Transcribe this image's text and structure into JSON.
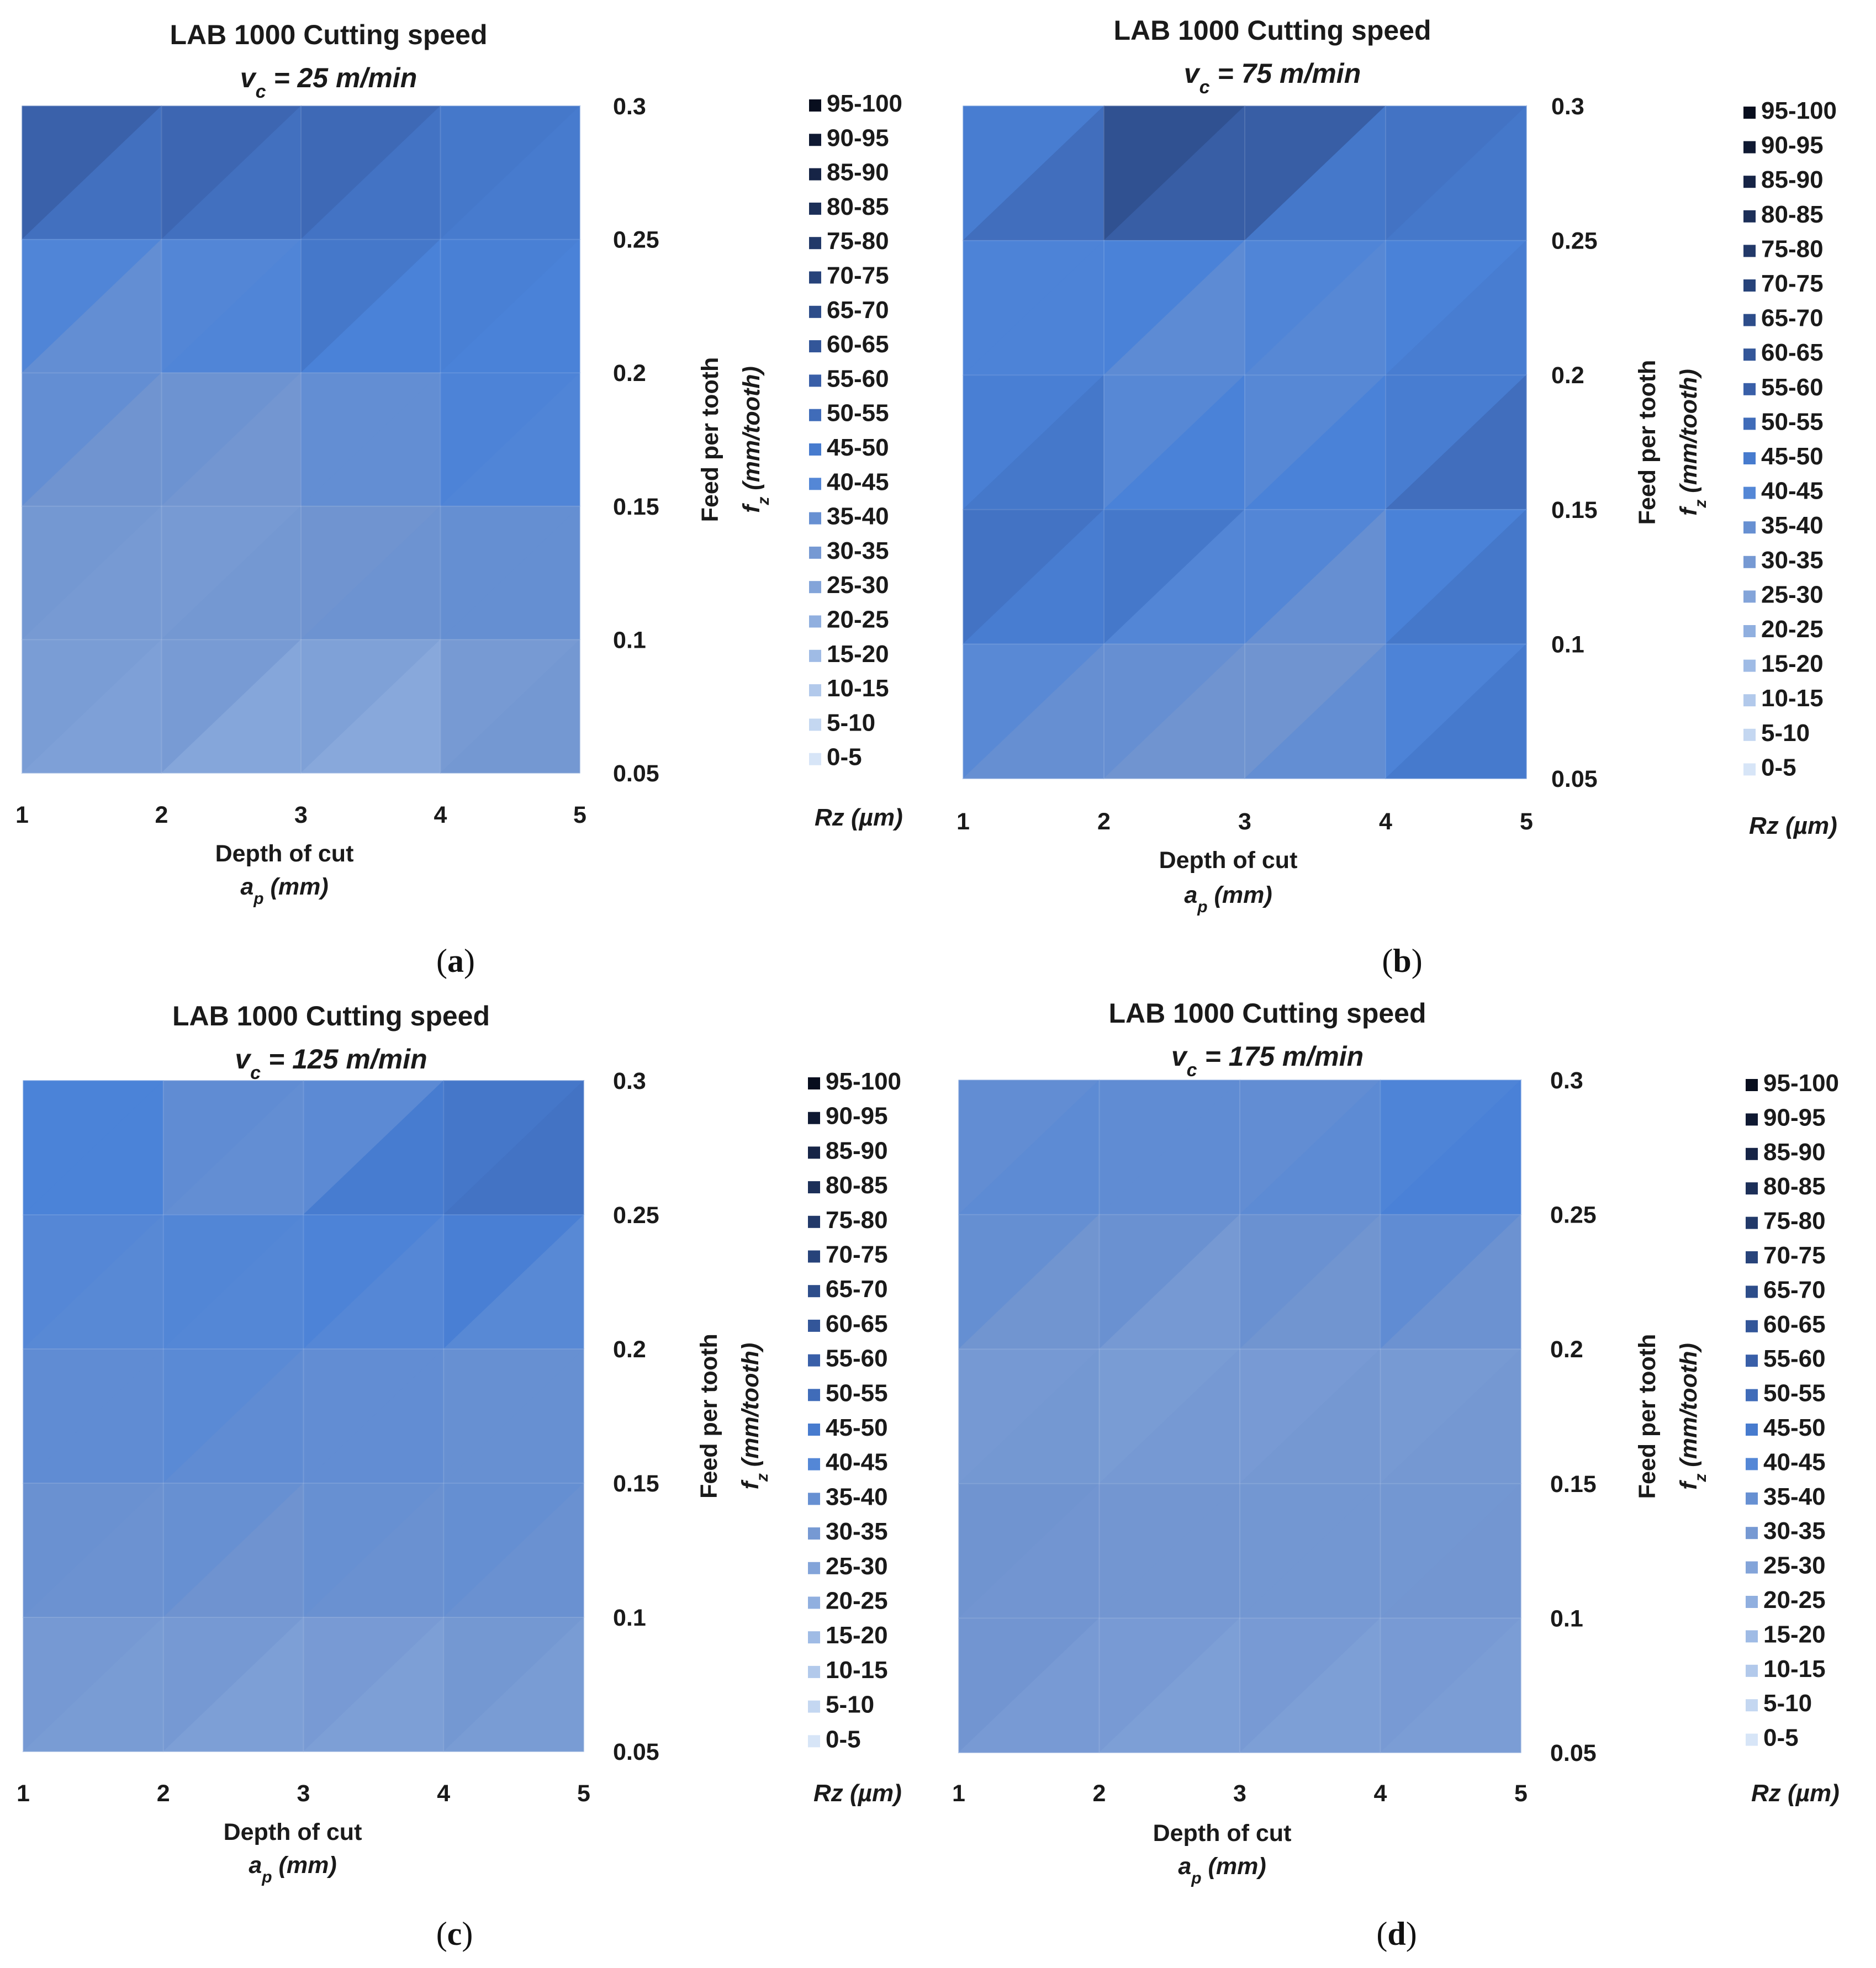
{
  "chart_data": [
    {
      "type": "heatmap",
      "panel": "a",
      "caption_letter": "a",
      "title": "LAB 1000 Cutting speed",
      "subtitle": "vc = 25 m/min",
      "subtitle_parts": {
        "var": "v",
        "sub": "c",
        "rest": " = 25 m/min"
      },
      "x_axis": {
        "label": "Depth of cut",
        "label_var": "a",
        "label_sub": "p",
        "label_unit": " (mm)",
        "ticks": [
          1,
          2,
          3,
          4,
          5
        ],
        "range": [
          1,
          5
        ]
      },
      "y_axis": {
        "label": "Feed per tooth",
        "label_var": "f",
        "label_sub": "z",
        "label_unit": " (mm/tooth)",
        "ticks": [
          "0.05",
          "0.1",
          "0.15",
          "0.2",
          "0.25",
          "0.3"
        ],
        "range": [
          0.05,
          0.3
        ]
      },
      "x": [
        1,
        2,
        3,
        4,
        5
      ],
      "y": [
        0.3,
        0.25,
        0.2,
        0.15,
        0.1,
        0.05
      ],
      "z": [
        [
          55,
          65,
          60,
          45,
          50
        ],
        [
          50,
          38,
          55,
          50,
          42
        ],
        [
          42,
          35,
          40,
          45,
          48
        ],
        [
          38,
          32,
          30,
          40,
          42
        ],
        [
          30,
          35,
          35,
          32,
          40
        ],
        [
          28,
          25,
          20,
          25,
          35
        ]
      ],
      "legend": {
        "title": "Rz (µm)",
        "title_var": "Rz",
        "title_unit": " (µm)",
        "entries": [
          "95-100",
          "90-95",
          "85-90",
          "80-85",
          "75-80",
          "70-75",
          "65-70",
          "60-65",
          "55-60",
          "50-55",
          "45-50",
          "40-45",
          "35-40",
          "30-35",
          "25-30",
          "20-25",
          "15-20",
          "10-15",
          "5-10",
          "0-5"
        ]
      }
    },
    {
      "type": "heatmap",
      "panel": "b",
      "caption_letter": "b",
      "title": "LAB 1000 Cutting speed",
      "subtitle": "vc = 75 m/min",
      "subtitle_parts": {
        "var": "v",
        "sub": "c",
        "rest": " = 75 m/min"
      },
      "x_axis": {
        "label": "Depth of cut",
        "label_var": "a",
        "label_sub": "p",
        "label_unit": " (mm)",
        "ticks": [
          1,
          2,
          3,
          4,
          5
        ],
        "range": [
          1,
          5
        ]
      },
      "y_axis": {
        "label": "Feed per tooth",
        "label_var": "f",
        "label_sub": "z",
        "label_unit": " (mm/tooth)",
        "ticks": [
          "0.05",
          "0.1",
          "0.15",
          "0.2",
          "0.25",
          "0.3"
        ],
        "range": [
          0.05,
          0.3
        ]
      },
      "x": [
        1,
        2,
        3,
        4,
        5
      ],
      "y": [
        0.3,
        0.25,
        0.2,
        0.15,
        0.1,
        0.05
      ],
      "z": [
        [
          30,
          70,
          80,
          45,
          55
        ],
        [
          40,
          45,
          50,
          50,
          40
        ],
        [
          48,
          40,
          30,
          45,
          55
        ],
        [
          50,
          55,
          50,
          40,
          60
        ],
        [
          45,
          40,
          38,
          35,
          50
        ],
        [
          38,
          35,
          32,
          48,
          45
        ]
      ],
      "legend": {
        "title": "Rz (µm)",
        "title_var": "Rz",
        "title_unit": " (µm)",
        "entries": [
          "95-100",
          "90-95",
          "85-90",
          "80-85",
          "75-80",
          "70-75",
          "65-70",
          "60-65",
          "55-60",
          "50-55",
          "45-50",
          "40-45",
          "35-40",
          "30-35",
          "25-30",
          "20-25",
          "15-20",
          "10-15",
          "5-10",
          "0-5"
        ]
      }
    },
    {
      "type": "heatmap",
      "panel": "c",
      "caption_letter": "c",
      "title": "LAB 1000 Cutting speed",
      "subtitle": "vc = 125 m/min",
      "subtitle_parts": {
        "var": "v",
        "sub": "c",
        "rest": " = 125 m/min"
      },
      "x_axis": {
        "label": "Depth of cut",
        "label_var": "a",
        "label_sub": "p",
        "label_unit": " (mm)",
        "ticks": [
          1,
          2,
          3,
          4,
          5
        ],
        "range": [
          1,
          5
        ]
      },
      "y_axis": {
        "label": "Feed per tooth",
        "label_var": "f",
        "label_sub": "z",
        "label_unit": " (mm/tooth)",
        "ticks": [
          "0.05",
          "0.1",
          "0.15",
          "0.2",
          "0.25",
          "0.3"
        ],
        "range": [
          0.05,
          0.3
        ]
      },
      "x": [
        1,
        2,
        3,
        4,
        5
      ],
      "y": [
        0.3,
        0.25,
        0.2,
        0.15,
        0.1,
        0.05
      ],
      "z": [
        [
          42,
          48,
          28,
          48,
          50
        ],
        [
          44,
          42,
          45,
          48,
          52
        ],
        [
          40,
          42,
          40,
          38,
          34
        ],
        [
          36,
          40,
          38,
          40,
          38
        ],
        [
          34,
          34,
          34,
          36,
          36
        ],
        [
          30,
          30,
          26,
          28,
          30
        ]
      ],
      "legend": {
        "title": "Rz (µm)",
        "title_var": "Rz",
        "title_unit": " (µm)",
        "entries": [
          "95-100",
          "90-95",
          "85-90",
          "80-85",
          "75-80",
          "70-75",
          "65-70",
          "60-65",
          "55-60",
          "50-55",
          "45-50",
          "40-45",
          "35-40",
          "30-35",
          "25-30",
          "20-25",
          "15-20",
          "10-15",
          "5-10",
          "0-5"
        ]
      }
    },
    {
      "type": "heatmap",
      "panel": "d",
      "caption_letter": "d",
      "title": "LAB 1000 Cutting speed",
      "subtitle": "vc = 175 m/min",
      "subtitle_parts": {
        "var": "v",
        "sub": "c",
        "rest": " = 175 m/min"
      },
      "x_axis": {
        "label": "Depth of cut",
        "label_var": "a",
        "label_sub": "p",
        "label_unit": " (mm)",
        "ticks": [
          1,
          2,
          3,
          4,
          5
        ],
        "range": [
          1,
          5
        ]
      },
      "y_axis": {
        "label": "Feed per tooth",
        "label_var": "f",
        "label_sub": "z",
        "label_unit": " (mm/tooth)",
        "ticks": [
          "0.05",
          "0.1",
          "0.15",
          "0.2",
          "0.25",
          "0.3"
        ],
        "range": [
          0.05,
          0.3
        ]
      },
      "x": [
        1,
        2,
        3,
        4,
        5
      ],
      "y": [
        0.3,
        0.25,
        0.2,
        0.15,
        0.1,
        0.05
      ],
      "z": [
        [
          38,
          38,
          38,
          40,
          50
        ],
        [
          40,
          42,
          38,
          42,
          44
        ],
        [
          32,
          30,
          30,
          32,
          32
        ],
        [
          36,
          34,
          34,
          33,
          34
        ],
        [
          35,
          34,
          34,
          34,
          34
        ],
        [
          34,
          28,
          28,
          28,
          30
        ]
      ],
      "legend": {
        "title": "Rz (µm)",
        "title_var": "Rz",
        "title_unit": " (µm)",
        "entries": [
          "95-100",
          "90-95",
          "85-90",
          "80-85",
          "75-80",
          "70-75",
          "65-70",
          "60-65",
          "55-60",
          "50-55",
          "45-50",
          "40-45",
          "35-40",
          "30-35",
          "25-30",
          "20-25",
          "15-20",
          "10-15",
          "5-10",
          "0-5"
        ]
      }
    }
  ]
}
